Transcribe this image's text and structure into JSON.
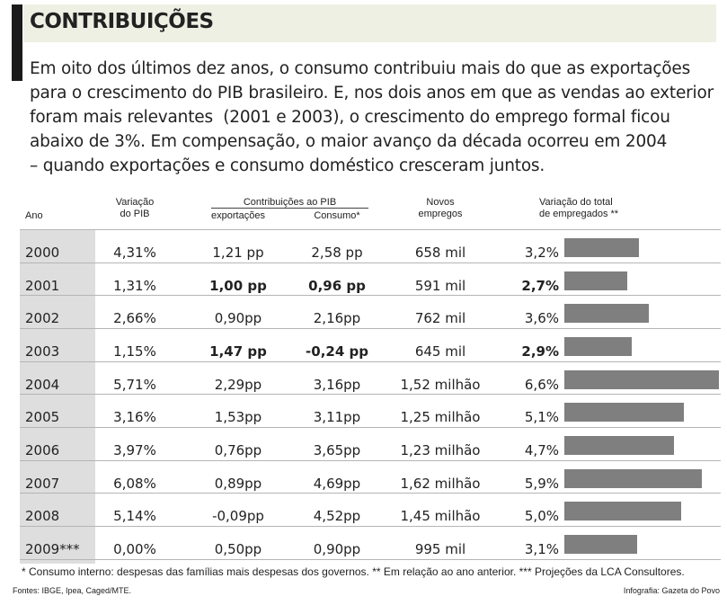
{
  "header": {
    "title": "CONTRIBUIÇÕES",
    "intro": [
      "Em oito dos últimos dez anos, o consumo contribuiu mais do que as exportações",
      "para o crescimento do PIB brasileiro. E, nos dois anos em que as vendas ao exterior",
      "foram mais relevantes  (2001 e 2003), o crescimento do emprego formal ficou",
      "abaixo de 3%. Em compensação, o maior avanço da década ocorreu em 2004",
      "– quando exportações e consumo doméstico cresceram juntos."
    ]
  },
  "table": {
    "columns": {
      "year": "Ano",
      "gdp": "Variação\ndo PIB",
      "contrib": "Contribuições ao PIB",
      "exports": "exportações",
      "consumption": "Consumo*",
      "jobs": "Novos\nempregos",
      "employed": "Variação do total\nde empregados **"
    },
    "rows": [
      {
        "year": "2000",
        "gdp": "4,31%",
        "exports": "1,21 pp",
        "consumption": "2,58 pp",
        "jobs": "658 mil",
        "employed": 3.2,
        "employed_label": "3,2%"
      },
      {
        "year": "2001",
        "gdp": "1,31%",
        "exports": "1,00 pp",
        "consumption": "0,96 pp",
        "jobs": "591 mil",
        "employed": 2.7,
        "employed_label": "2,7%",
        "bold": true
      },
      {
        "year": "2002",
        "gdp": "2,66%",
        "exports": "0,90pp",
        "consumption": "2,16pp",
        "jobs": "762 mil",
        "employed": 3.6,
        "employed_label": "3,6%"
      },
      {
        "year": "2003",
        "gdp": "1,15%",
        "exports": "1,47 pp",
        "consumption": "-0,24 pp",
        "jobs": "645 mil",
        "employed": 2.9,
        "employed_label": "2,9%",
        "bold": true
      },
      {
        "year": "2004",
        "gdp": "5,71%",
        "exports": "2,29pp",
        "consumption": "3,16pp",
        "jobs": "1,52 milhão",
        "employed": 6.6,
        "employed_label": "6,6%"
      },
      {
        "year": "2005",
        "gdp": "3,16%",
        "exports": "1,53pp",
        "consumption": "3,11pp",
        "jobs": "1,25 milhão",
        "employed": 5.1,
        "employed_label": "5,1%"
      },
      {
        "year": "2006",
        "gdp": "3,97%",
        "exports": "0,76pp",
        "consumption": "3,65pp",
        "jobs": "1,23 milhão",
        "employed": 4.7,
        "employed_label": "4,7%"
      },
      {
        "year": "2007",
        "gdp": "6,08%",
        "exports": "0,89pp",
        "consumption": "4,69pp",
        "jobs": "1,62 milhão",
        "employed": 5.9,
        "employed_label": "5,9%"
      },
      {
        "year": "2008",
        "gdp": "5,14%",
        "exports": "-0,09pp",
        "consumption": "4,52pp",
        "jobs": "1,45 milhão",
        "employed": 5.0,
        "employed_label": "5,0%"
      },
      {
        "year": "2009***",
        "gdp": "0,00%",
        "exports": "0,50pp",
        "consumption": "0,90pp",
        "jobs": "995 mil",
        "employed": 3.1,
        "employed_label": "3,1%"
      }
    ],
    "bar_color": "#7f7f7f"
  },
  "footnote": "* Consumo interno: despesas das famílias mais despesas dos governos. ** Em relação ao ano anterior. *** Projeções da LCA Consultores.",
  "sources": "Fontes: IBGE, Ipea, Caged/MTE.",
  "credit": "Infografia: Gazeta do Povo"
}
